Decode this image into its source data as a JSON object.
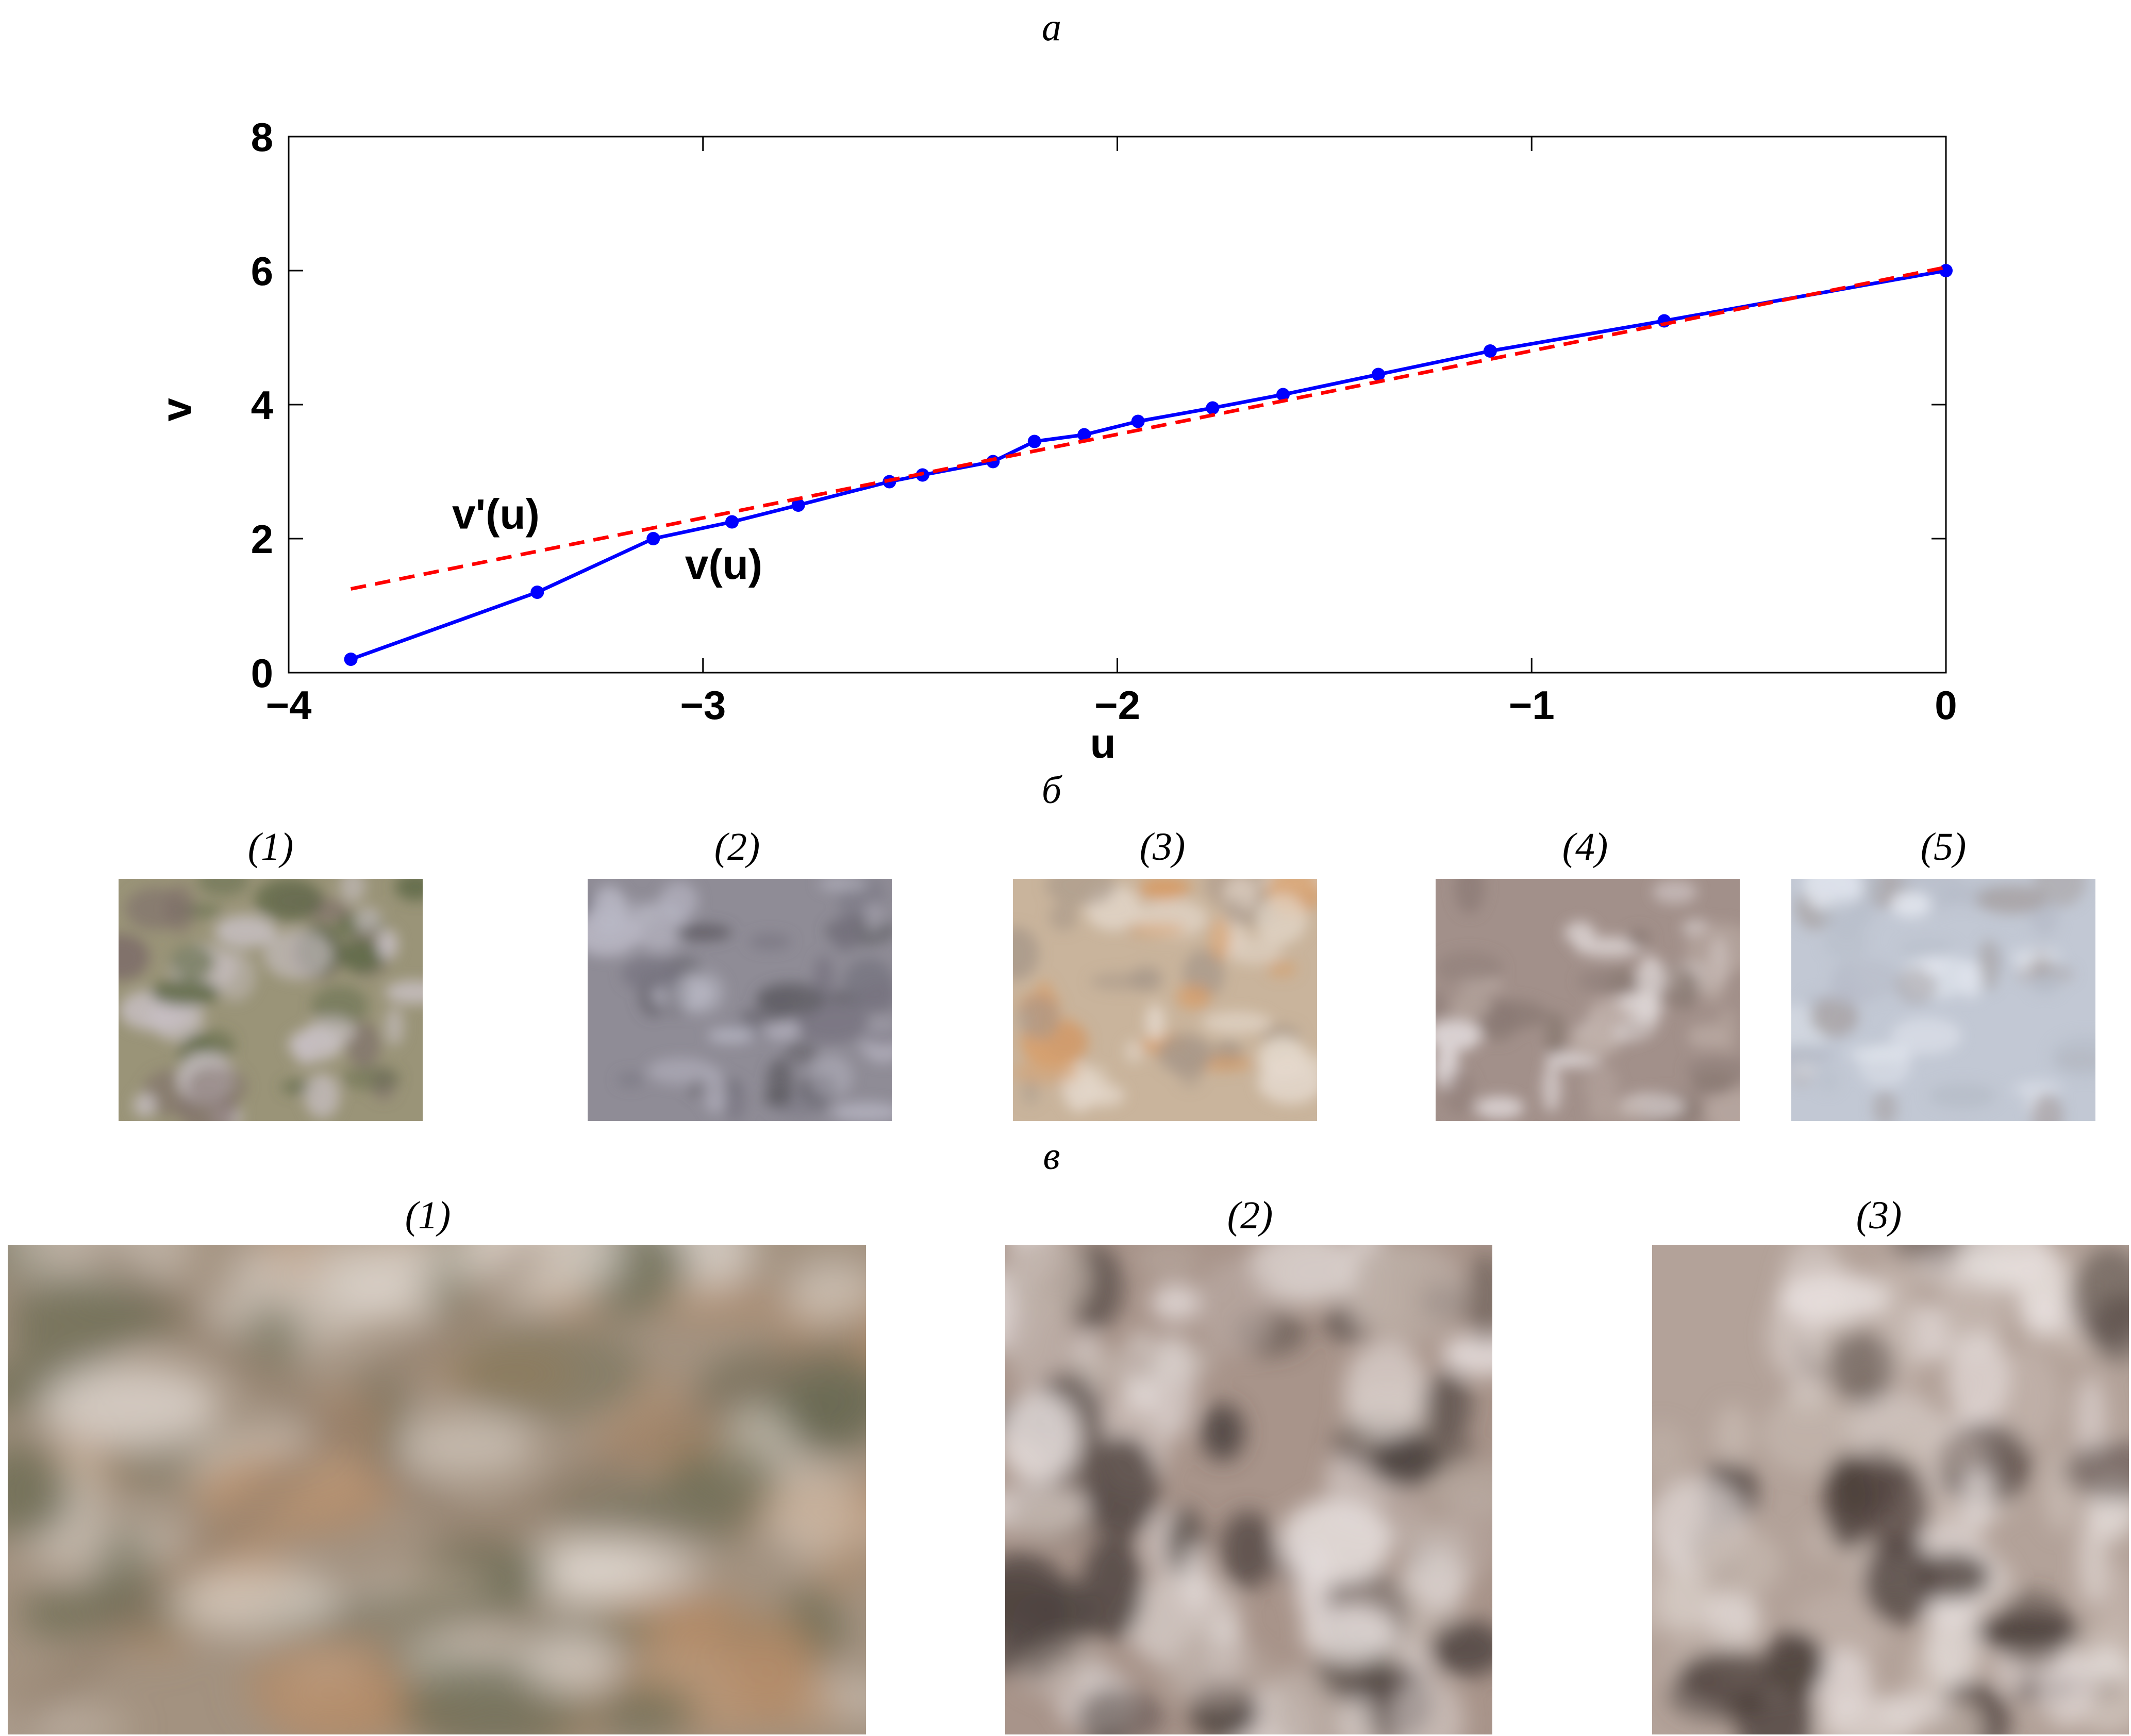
{
  "panels": {
    "a": "а",
    "b": "б",
    "v": "в"
  },
  "chart_data": {
    "type": "line",
    "xlabel": "u",
    "ylabel": "v",
    "xlim": [
      -4,
      0
    ],
    "ylim": [
      0,
      8
    ],
    "xticks": [
      "−4",
      "−3",
      "−2",
      "−1",
      "0"
    ],
    "xtick_values": [
      -4,
      -3,
      -2,
      -1,
      0
    ],
    "yticks": [
      "0",
      "2",
      "4",
      "6",
      "8"
    ],
    "ytick_values": [
      0,
      2,
      4,
      6,
      8
    ],
    "grid": true,
    "series": [
      {
        "name": "v(u)",
        "color": "#0000ff",
        "style": "solid-with-markers",
        "x": [
          -3.85,
          -3.4,
          -3.12,
          -2.93,
          -2.77,
          -2.55,
          -2.47,
          -2.3,
          -2.2,
          -2.08,
          -1.95,
          -1.77,
          -1.6,
          -1.37,
          -1.1,
          -0.68,
          0
        ],
        "y": [
          0.2,
          1.2,
          2.0,
          2.25,
          2.5,
          2.85,
          2.95,
          3.15,
          3.45,
          3.55,
          3.75,
          3.95,
          4.15,
          4.45,
          4.8,
          5.25,
          6.0
        ]
      },
      {
        "name": "v'(u)",
        "color": "#ff0000",
        "style": "dashed",
        "x": [
          -3.85,
          0
        ],
        "y": [
          1.25,
          6.05
        ]
      }
    ],
    "annotations": [
      {
        "text": "v'(u)",
        "x": -3.5,
        "y": 2.15
      },
      {
        "text": "v(u)",
        "x": -2.95,
        "y": 1.4
      }
    ]
  },
  "row_b": {
    "captions": [
      "(1)",
      "(2)",
      "(3)",
      "(4)",
      "(5)"
    ],
    "palettes": [
      {
        "base": "#9a9478",
        "a": "#5f6a48",
        "b": "#c8c0c4",
        "c": "#7e6e6a"
      },
      {
        "base": "#8f8c96",
        "a": "#5e5c62",
        "b": "#b9b7c4",
        "c": "#777480"
      },
      {
        "base": "#c9b49c",
        "a": "#d89c66",
        "b": "#e4d8cc",
        "c": "#a8988a"
      },
      {
        "base": "#a2908a",
        "a": "#8a7a74",
        "b": "#e2dbdc",
        "c": "#b9a9a2"
      },
      {
        "base": "#c2c8d4",
        "a": "#a9a4a6",
        "b": "#e2e6ee",
        "c": "#b6bcc8"
      }
    ]
  },
  "row_c": {
    "captions": [
      "(1)",
      "(2)",
      "(3)"
    ],
    "palettes": [
      {
        "base": "#a39280",
        "a": "#6a6a52",
        "b": "#dcd4cc",
        "c": "#b28a66"
      },
      {
        "base": "#a8948a",
        "a": "#4e4440",
        "b": "#e4dcda",
        "c": "#bcaea6"
      },
      {
        "base": "#b3a299",
        "a": "#4a3e3a",
        "b": "#e6dedc",
        "c": "#c6b8b0"
      }
    ]
  }
}
